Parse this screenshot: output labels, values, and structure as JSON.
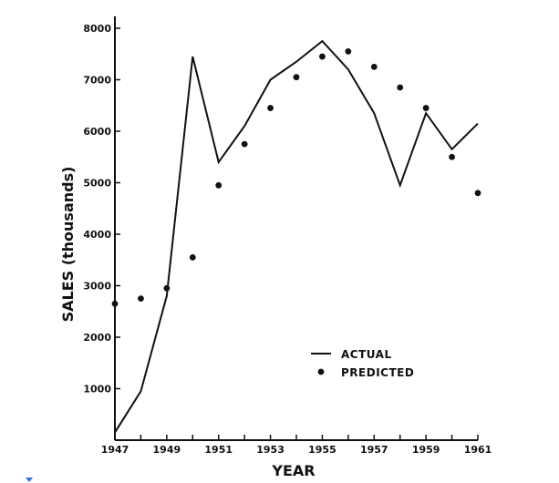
{
  "chart_data": {
    "type": "line",
    "title": "",
    "xlabel": "YEAR",
    "ylabel": "SALES (thousands)",
    "xlim": [
      1947,
      1961
    ],
    "ylim": [
      0,
      8000
    ],
    "x_ticks": [
      1947,
      1949,
      1951,
      1953,
      1955,
      1957,
      1959,
      1961
    ],
    "y_ticks": [
      1000,
      2000,
      3000,
      4000,
      5000,
      6000,
      7000,
      8000
    ],
    "x_tick_labels": [
      "1947",
      "1949",
      "1951",
      "1953",
      "1955",
      "1957",
      "1959",
      "1961"
    ],
    "y_tick_labels": [
      "1000",
      "2000",
      "3000",
      "4000",
      "5000",
      "6000",
      "7000",
      "8000"
    ],
    "grid": false,
    "legend": "center-right",
    "series": [
      {
        "name": "ACTUAL",
        "style": "line",
        "color": "#111111",
        "x": [
          1947,
          1948,
          1949,
          1950,
          1951,
          1952,
          1953,
          1954,
          1955,
          1956,
          1957,
          1958,
          1959,
          1960,
          1961
        ],
        "values": [
          150,
          950,
          2800,
          7450,
          5400,
          6100,
          7000,
          7350,
          7750,
          7200,
          6350,
          4950,
          6350,
          5650,
          6150
        ]
      },
      {
        "name": "PREDICTED",
        "style": "points",
        "color": "#111111",
        "x": [
          1947,
          1948,
          1949,
          1950,
          1951,
          1952,
          1953,
          1954,
          1955,
          1956,
          1957,
          1958,
          1959,
          1960,
          1961
        ],
        "values": [
          2650,
          2750,
          2950,
          3550,
          4950,
          5750,
          6450,
          7050,
          7450,
          7550,
          7250,
          6850,
          6450,
          5500,
          4800
        ]
      }
    ]
  }
}
